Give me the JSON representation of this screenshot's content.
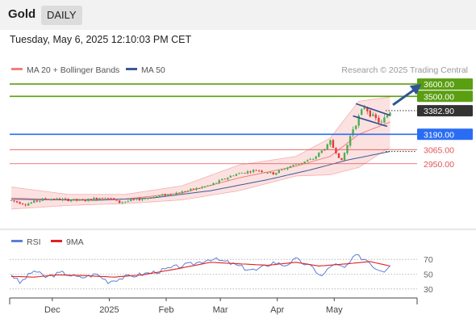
{
  "instrument": {
    "name": "Gold",
    "timeframe": "DAILY"
  },
  "timestamp": "Tuesday, May 6, 2025 12:10:03 PM CET",
  "legend": [
    {
      "label": "MA 20 + Bollinger Bands",
      "color": "#f08080"
    },
    {
      "label": "MA 50",
      "color": "#3d5a99"
    }
  ],
  "credit": "Research © 2025 Trading Central",
  "chart_data": {
    "type": "candlestick",
    "price_axis": {
      "ylim": [
        2540,
        3660
      ]
    },
    "x_ticks": [
      "Dec",
      "2025",
      "Feb",
      "Mar",
      "Apr",
      "May"
    ],
    "levels": [
      {
        "value": 3600,
        "label": "3600.00",
        "color": "#5a9e12",
        "style": "solid",
        "label_style": "filled"
      },
      {
        "value": 3500,
        "label": "3500.00",
        "color": "#5a9e12",
        "style": "solid",
        "label_style": "filled"
      },
      {
        "value": 3382.9,
        "label": "3382.90",
        "color": "#333333",
        "style": "dotted",
        "label_style": "filled"
      },
      {
        "value": 3190,
        "label": "3190.00",
        "color": "#2a6df4",
        "style": "solid",
        "label_style": "filled"
      },
      {
        "value": 3065,
        "label": "3065.00",
        "color": "#e05555",
        "style": "solid",
        "label_style": "text"
      },
      {
        "value": 2950,
        "label": "2950.00",
        "color": "#e05555",
        "style": "solid",
        "label_style": "text"
      }
    ],
    "anchors": [
      {
        "x": 0,
        "y": 2650
      },
      {
        "x": 5,
        "y": 2620
      },
      {
        "x": 12,
        "y": 2665
      },
      {
        "x": 25,
        "y": 2650
      },
      {
        "x": 33,
        "y": 2680
      },
      {
        "x": 38,
        "y": 2635
      },
      {
        "x": 50,
        "y": 2680
      },
      {
        "x": 60,
        "y": 2720
      },
      {
        "x": 70,
        "y": 2775
      },
      {
        "x": 78,
        "y": 2860
      },
      {
        "x": 86,
        "y": 2900
      },
      {
        "x": 92,
        "y": 2870
      },
      {
        "x": 98,
        "y": 2930
      },
      {
        "x": 106,
        "y": 2990
      },
      {
        "x": 112,
        "y": 3120
      },
      {
        "x": 116,
        "y": 2970
      },
      {
        "x": 120,
        "y": 3240
      },
      {
        "x": 124,
        "y": 3420
      },
      {
        "x": 127,
        "y": 3330
      },
      {
        "x": 130,
        "y": 3280
      },
      {
        "x": 133,
        "y": 3380
      }
    ],
    "ma20": [
      [
        0,
        2670
      ],
      [
        20,
        2655
      ],
      [
        40,
        2662
      ],
      [
        60,
        2712
      ],
      [
        80,
        2835
      ],
      [
        100,
        2930
      ],
      [
        112,
        3010
      ],
      [
        122,
        3190
      ],
      [
        133,
        3290
      ]
    ],
    "ma50": [
      [
        0,
        2660
      ],
      [
        30,
        2652
      ],
      [
        50,
        2672
      ],
      [
        70,
        2730
      ],
      [
        90,
        2820
      ],
      [
        105,
        2900
      ],
      [
        118,
        2980
      ],
      [
        133,
        3050
      ]
    ],
    "bb_upper": [
      [
        0,
        2760
      ],
      [
        20,
        2700
      ],
      [
        40,
        2700
      ],
      [
        60,
        2770
      ],
      [
        80,
        2940
      ],
      [
        100,
        3010
      ],
      [
        112,
        3160
      ],
      [
        122,
        3460
      ],
      [
        133,
        3495
      ]
    ],
    "bb_lower": [
      [
        0,
        2580
      ],
      [
        20,
        2610
      ],
      [
        40,
        2625
      ],
      [
        60,
        2655
      ],
      [
        80,
        2730
      ],
      [
        100,
        2850
      ],
      [
        112,
        2860
      ],
      [
        122,
        2920
      ],
      [
        133,
        3085
      ]
    ],
    "pattern": {
      "upper": [
        [
          121,
          3440
        ],
        [
          133,
          3345
        ]
      ],
      "lower": [
        [
          120,
          3340
        ],
        [
          132,
          3255
        ]
      ]
    },
    "arrow": {
      "from": [
        134,
        3430
      ],
      "to": [
        144,
        3600
      ]
    },
    "rsi_panel": {
      "legend": [
        {
          "label": "RSI",
          "color": "#5b7fd6"
        },
        {
          "label": "9MA",
          "color": "#e02020"
        }
      ],
      "ylim": [
        20,
        80
      ],
      "levels": [
        70,
        50,
        30
      ],
      "rsi": [
        [
          0,
          50
        ],
        [
          3,
          38
        ],
        [
          8,
          55
        ],
        [
          12,
          46
        ],
        [
          18,
          52
        ],
        [
          24,
          45
        ],
        [
          30,
          50
        ],
        [
          34,
          40
        ],
        [
          40,
          46
        ],
        [
          46,
          50
        ],
        [
          52,
          54
        ],
        [
          58,
          60
        ],
        [
          64,
          64
        ],
        [
          70,
          71
        ],
        [
          76,
          66
        ],
        [
          82,
          58
        ],
        [
          86,
          55
        ],
        [
          92,
          66
        ],
        [
          96,
          62
        ],
        [
          100,
          70
        ],
        [
          106,
          58
        ],
        [
          109,
          47
        ],
        [
          113,
          64
        ],
        [
          117,
          58
        ],
        [
          121,
          75
        ],
        [
          125,
          69
        ],
        [
          128,
          58
        ],
        [
          131,
          55
        ],
        [
          133,
          64
        ]
      ],
      "ma9": [
        [
          0,
          47
        ],
        [
          8,
          46
        ],
        [
          16,
          49
        ],
        [
          26,
          48
        ],
        [
          36,
          46
        ],
        [
          46,
          49
        ],
        [
          58,
          57
        ],
        [
          70,
          66
        ],
        [
          80,
          64
        ],
        [
          90,
          62
        ],
        [
          100,
          66
        ],
        [
          108,
          61
        ],
        [
          118,
          64
        ],
        [
          126,
          67
        ],
        [
          133,
          61
        ]
      ]
    }
  }
}
